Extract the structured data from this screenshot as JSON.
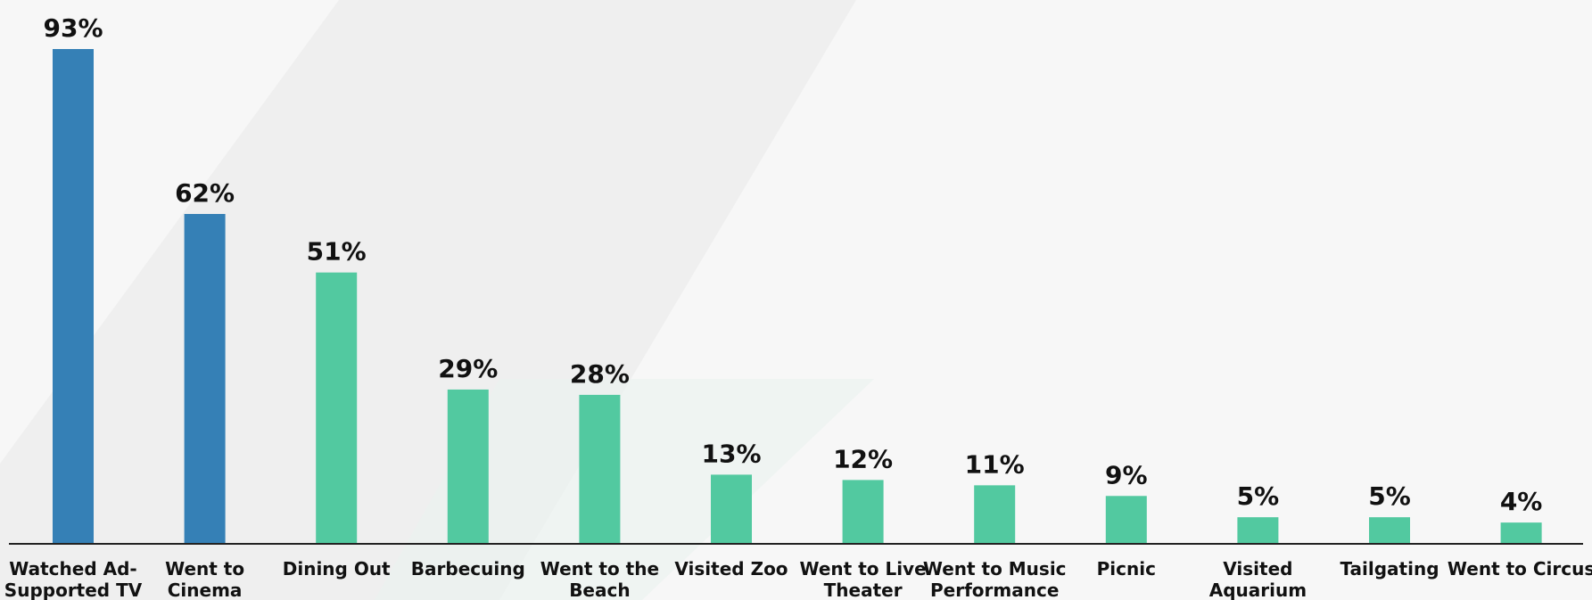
{
  "chart_data": {
    "type": "bar",
    "title": "",
    "xlabel": "",
    "ylabel": "",
    "ylim": [
      0,
      100
    ],
    "grid": false,
    "legend": "none",
    "categories": [
      [
        "Watched Ad-",
        "Supported TV"
      ],
      [
        "Went to",
        "Cinema"
      ],
      [
        "Dining Out"
      ],
      [
        "Barbecuing"
      ],
      [
        "Went to the",
        "Beach"
      ],
      [
        "Visited Zoo"
      ],
      [
        "Went to Live",
        "Theater"
      ],
      [
        "Went to Music",
        "Performance"
      ],
      [
        "Picnic"
      ],
      [
        "Visited",
        "Aquarium"
      ],
      [
        "Tailgating"
      ],
      [
        "Went to Circus"
      ]
    ],
    "values": [
      93,
      62,
      51,
      29,
      28,
      13,
      12,
      11,
      9,
      5,
      5,
      4
    ],
    "value_labels": [
      "93%",
      "62%",
      "51%",
      "29%",
      "28%",
      "13%",
      "12%",
      "11%",
      "9%",
      "5%",
      "5%",
      "4%"
    ],
    "bar_colors": [
      "#3580b6",
      "#3580b6",
      "#52c9a0",
      "#52c9a0",
      "#52c9a0",
      "#52c9a0",
      "#52c9a0",
      "#52c9a0",
      "#52c9a0",
      "#52c9a0",
      "#52c9a0",
      "#52c9a0"
    ]
  },
  "colors": {
    "background": "#f7f7f7",
    "highlight_bar": "#3580b6",
    "standard_bar": "#52c9a0",
    "axis": "#222222",
    "text": "#111111"
  }
}
